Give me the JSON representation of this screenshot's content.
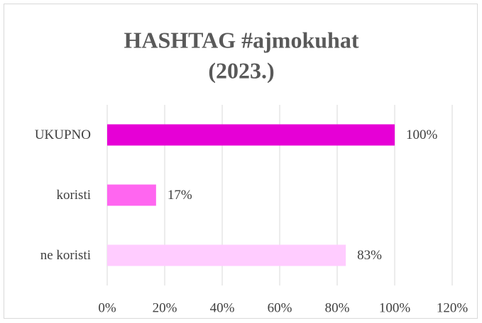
{
  "chart_data": {
    "type": "bar",
    "orientation": "horizontal",
    "title": [
      "HASHTAG #ajmokuhat",
      "(2023.)"
    ],
    "categories": [
      "UKUPNO",
      "koristi",
      "ne koristi"
    ],
    "values": [
      100,
      17,
      83
    ],
    "value_labels": [
      "100%",
      "17%",
      "83%"
    ],
    "colors": [
      "#e600d6",
      "#ff66f0",
      "#ffccff"
    ],
    "xlim": [
      0,
      120
    ],
    "xticks": [
      {
        "value": 0,
        "label": "0%"
      },
      {
        "value": 20,
        "label": "20%"
      },
      {
        "value": 40,
        "label": "40%"
      },
      {
        "value": 60,
        "label": "60%"
      },
      {
        "value": 80,
        "label": "80%"
      },
      {
        "value": 100,
        "label": "100%"
      },
      {
        "value": 120,
        "label": "120%"
      }
    ],
    "grid": true
  }
}
